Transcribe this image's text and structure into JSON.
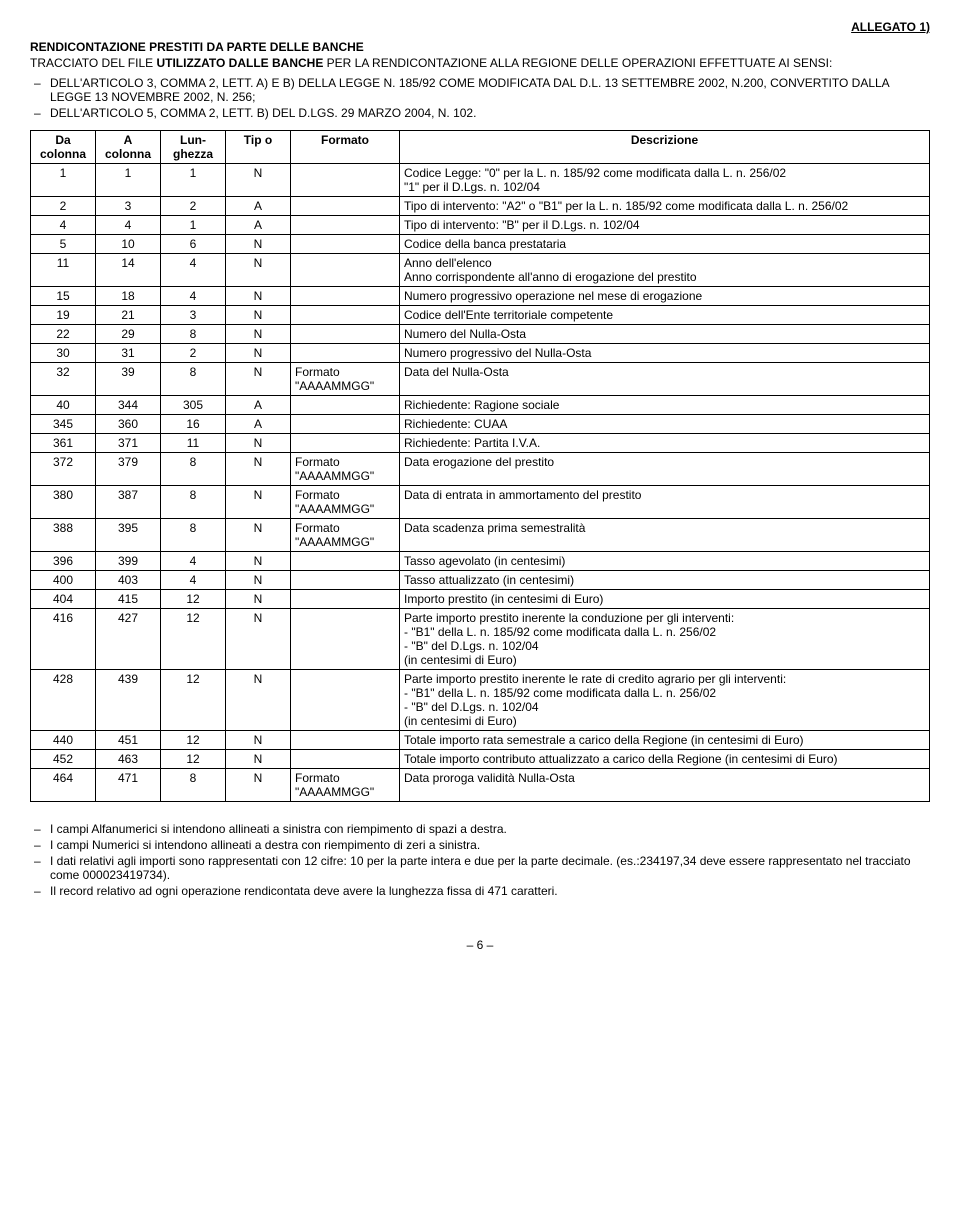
{
  "allegato": "ALLEGATO 1)",
  "title": "RENDICONTAZIONE PRESTITI DA PARTE DELLE BANCHE",
  "intro_prefix": "TRACCIATO DEL FILE ",
  "intro_bold": "UTILIZZATO DALLE BANCHE",
  "intro_suffix": " PER LA  RENDICONTAZIONE ALLA REGIONE DELLE OPERAZIONI EFFETTUATE AI SENSI:",
  "law_refs": [
    "DELL'ARTICOLO 3, COMMA 2, LETT. A) E B) DELLA LEGGE N. 185/92 COME MODIFICATA DAL D.L. 13 SETTEMBRE 2002, N.200, CONVERTITO DALLA LEGGE 13 NOVEMBRE 2002, N. 256;",
    "DELL'ARTICOLO 5, COMMA 2, LETT. B) DEL D.LGS. 29 MARZO 2004, N. 102."
  ],
  "headers": {
    "da": "Da colonna",
    "a": "A colonna",
    "lun": "Lun-ghezza",
    "tipo": "Tip o",
    "formato": "Formato",
    "desc": "Descrizione"
  },
  "rows": [
    {
      "da": "1",
      "a": "1",
      "lun": "1",
      "tipo": "N",
      "fmt": "",
      "desc": "Codice Legge: \"0\" per la L. n. 185/92 come modificata dalla L. n. 256/02\n\"1\" per il D.Lgs. n. 102/04"
    },
    {
      "da": "2",
      "a": "3",
      "lun": "2",
      "tipo": "A",
      "fmt": "",
      "desc": "Tipo di intervento: \"A2\" o \"B1\" per la L. n. 185/92 come modificata dalla L. n. 256/02"
    },
    {
      "da": "4",
      "a": "4",
      "lun": "1",
      "tipo": "A",
      "fmt": "",
      "desc": "Tipo di intervento:  \"B\" per il D.Lgs. n. 102/04"
    },
    {
      "da": "5",
      "a": "10",
      "lun": "6",
      "tipo": "N",
      "fmt": "",
      "desc": "Codice della banca prestataria"
    },
    {
      "da": "11",
      "a": "14",
      "lun": "4",
      "tipo": "N",
      "fmt": "",
      "desc": "Anno dell'elenco\nAnno corrispondente all'anno di erogazione del prestito"
    },
    {
      "da": "15",
      "a": "18",
      "lun": "4",
      "tipo": "N",
      "fmt": "",
      "desc": "Numero progressivo operazione nel mese di erogazione"
    },
    {
      "da": "19",
      "a": "21",
      "lun": "3",
      "tipo": "N",
      "fmt": "",
      "desc": "Codice dell'Ente territoriale competente"
    },
    {
      "da": "22",
      "a": "29",
      "lun": "8",
      "tipo": "N",
      "fmt": "",
      "desc": "Numero del Nulla-Osta"
    },
    {
      "da": "30",
      "a": "31",
      "lun": "2",
      "tipo": "N",
      "fmt": "",
      "desc": "Numero progressivo del Nulla-Osta"
    },
    {
      "da": "32",
      "a": "39",
      "lun": "8",
      "tipo": "N",
      "fmt": "Formato \"AAAAMMGG\"",
      "desc": "Data del Nulla-Osta"
    },
    {
      "da": "40",
      "a": "344",
      "lun": "305",
      "tipo": "A",
      "fmt": "",
      "desc": "Richiedente: Ragione sociale"
    },
    {
      "da": "345",
      "a": "360",
      "lun": "16",
      "tipo": "A",
      "fmt": "",
      "desc": "Richiedente: CUAA"
    },
    {
      "da": "361",
      "a": "371",
      "lun": "11",
      "tipo": "N",
      "fmt": "",
      "desc": "Richiedente: Partita I.V.A."
    },
    {
      "da": "372",
      "a": "379",
      "lun": "8",
      "tipo": "N",
      "fmt": "Formato \"AAAAMMGG\"",
      "desc": "Data erogazione del prestito"
    },
    {
      "da": "380",
      "a": "387",
      "lun": "8",
      "tipo": "N",
      "fmt": "Formato \"AAAAMMGG\"",
      "desc": "Data di entrata in ammortamento del prestito"
    },
    {
      "da": "388",
      "a": "395",
      "lun": "8",
      "tipo": "N",
      "fmt": "Formato \"AAAAMMGG\"",
      "desc": "Data scadenza prima semestralità"
    },
    {
      "da": "396",
      "a": "399",
      "lun": "4",
      "tipo": "N",
      "fmt": "",
      "desc": "Tasso agevolato (in centesimi)"
    },
    {
      "da": "400",
      "a": "403",
      "lun": "4",
      "tipo": "N",
      "fmt": "",
      "desc": "Tasso attualizzato (in centesimi)"
    },
    {
      "da": "404",
      "a": "415",
      "lun": "12",
      "tipo": "N",
      "fmt": "",
      "desc": "Importo prestito (in centesimi di Euro)"
    },
    {
      "da": "416",
      "a": "427",
      "lun": "12",
      "tipo": "N",
      "fmt": "",
      "desc": "Parte importo prestito inerente la conduzione per gli interventi:\n   - \"B1\" della L. n. 185/92 come modificata dalla L. n. 256/02\n   - \"B\" del D.Lgs. n. 102/04\n(in centesimi di Euro)"
    },
    {
      "da": "428",
      "a": "439",
      "lun": "12",
      "tipo": "N",
      "fmt": "",
      "desc": "Parte importo prestito inerente le rate di credito agrario per gli interventi:\n   - \"B1\" della L. n. 185/92 come modificata dalla L. n. 256/02\n   - \"B\" del D.Lgs. n. 102/04\n(in centesimi di Euro)"
    },
    {
      "da": "440",
      "a": "451",
      "lun": "12",
      "tipo": "N",
      "fmt": "",
      "desc": "Totale importo rata semestrale a carico della Regione (in centesimi di Euro)"
    },
    {
      "da": "452",
      "a": "463",
      "lun": "12",
      "tipo": "N",
      "fmt": "",
      "desc": "Totale importo contributo attualizzato a carico della Regione (in centesimi di Euro)"
    },
    {
      "da": "464",
      "a": "471",
      "lun": "8",
      "tipo": "N",
      "fmt": "Formato \"AAAAMMGG\"",
      "desc": "Data proroga validità Nulla-Osta"
    }
  ],
  "notes": [
    "I campi Alfanumerici si intendono allineati a sinistra con riempimento di spazi a destra.",
    "I campi Numerici si intendono allineati a destra con riempimento di zeri a sinistra.",
    "I dati relativi agli importi sono rappresentati con 12 cifre: 10 per la parte intera e due per la parte decimale. (es.:234197,34 deve essere rappresentato nel tracciato come 000023419734).",
    "Il record relativo ad ogni operazione rendicontata deve avere la lunghezza fissa di 471 caratteri."
  ],
  "page": "– 6 –"
}
